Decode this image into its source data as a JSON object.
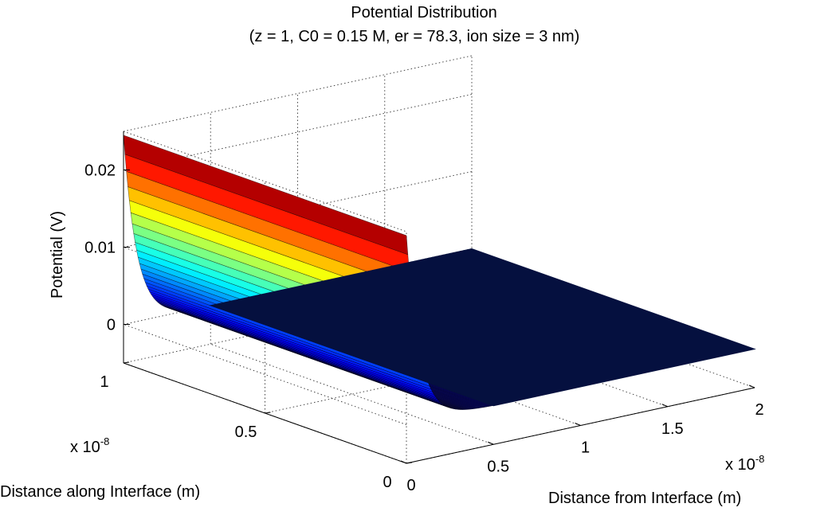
{
  "chart_data": {
    "type": "surface",
    "title": "Potential Distribution",
    "subtitle": "(z = 1, C0 = 0.15 M, er = 78.3, ion size = 3 nm)",
    "xlabel": "Distance from Interface (m)",
    "ylabel": "Distance along Interface (m)",
    "zlabel": "Potential (V)",
    "x_exponent_label": "x 10",
    "x_exponent": "-8",
    "y_exponent_label": "x 10",
    "y_exponent": "-8",
    "x_ticks": [
      0,
      0.5,
      1,
      1.5,
      2
    ],
    "x_tick_labels": [
      "0",
      "0.5",
      "1",
      "1.5",
      "2"
    ],
    "y_ticks": [
      0,
      0.5,
      1
    ],
    "y_tick_labels": [
      "0",
      "0.5",
      "1"
    ],
    "z_ticks": [
      0,
      0.01,
      0.02
    ],
    "z_tick_labels": [
      "0",
      "0.01",
      "0.02"
    ],
    "xlim": [
      0,
      2e-08
    ],
    "ylim": [
      0,
      1e-08
    ],
    "zlim": [
      -0.005,
      0.025
    ],
    "grid": true,
    "colormap": "jet",
    "surface": {
      "description": "potential(x) = 0.0245 * exp(-x / 0.77e-9), constant along y",
      "x": [
        0,
        1e-09,
        2e-09,
        3e-09,
        4e-09,
        5e-09,
        7.5e-09,
        1e-08,
        1.5e-08,
        2e-08
      ],
      "potential": [
        0.0245,
        0.0067,
        0.0018,
        0.0005,
        0.00014,
        4e-05,
        0.0,
        0.0,
        0.0,
        0.0
      ]
    }
  }
}
